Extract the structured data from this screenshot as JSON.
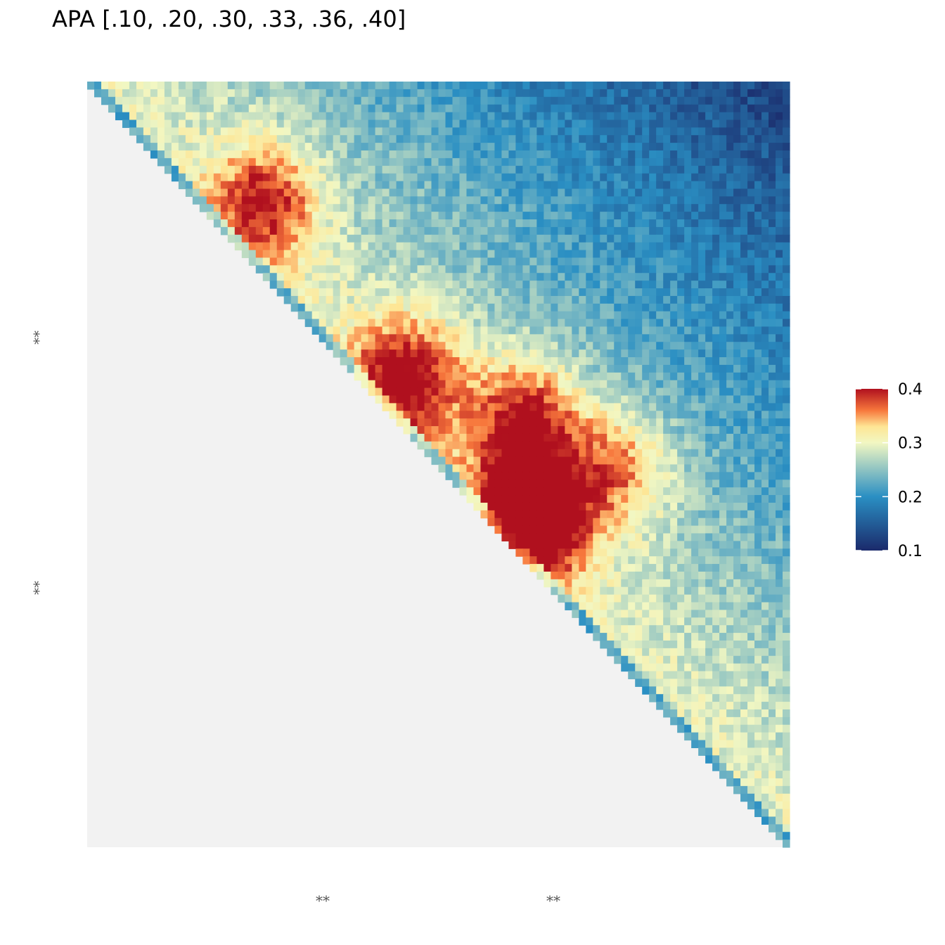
{
  "title": "APA [.10, .20, .30, .33, .36, .40]",
  "chart_data": {
    "type": "heatmap",
    "shape": "upper-triangle",
    "grid_size": 100,
    "value_range": [
      0.1,
      0.4
    ],
    "color_stops": [
      {
        "value": 0.1,
        "color": "#1b2a6b"
      },
      {
        "value": 0.2,
        "color": "#2a8fc3"
      },
      {
        "value": 0.3,
        "color": "#f2f7c2"
      },
      {
        "value": 0.33,
        "color": "#fee594"
      },
      {
        "value": 0.36,
        "color": "#f7773c"
      },
      {
        "value": 0.4,
        "color": "#b0101e"
      }
    ],
    "empty_color": "#f2f2f2",
    "x_tick_labels": [
      "**",
      "**"
    ],
    "y_tick_labels": [
      "**",
      "**"
    ],
    "legend": {
      "position": "right",
      "ticks": [
        0.4,
        0.3,
        0.2,
        0.1
      ],
      "tick_labels": [
        "0.4",
        "0.3",
        "0.2",
        "0.1"
      ]
    },
    "features": {
      "diagonal_band_value": 0.22,
      "upper_right_corner_value": 0.15,
      "hotspots": [
        {
          "row": 15,
          "col": 25,
          "value": 0.4
        },
        {
          "row": 38,
          "col": 45,
          "value": 0.42
        },
        {
          "row": 43,
          "col": 62,
          "value": 0.41
        },
        {
          "row": 50,
          "col": 75,
          "value": 0.38
        },
        {
          "row": 55,
          "col": 62,
          "value": 0.4
        },
        {
          "row": 58,
          "col": 63,
          "value": 0.39
        }
      ]
    }
  }
}
